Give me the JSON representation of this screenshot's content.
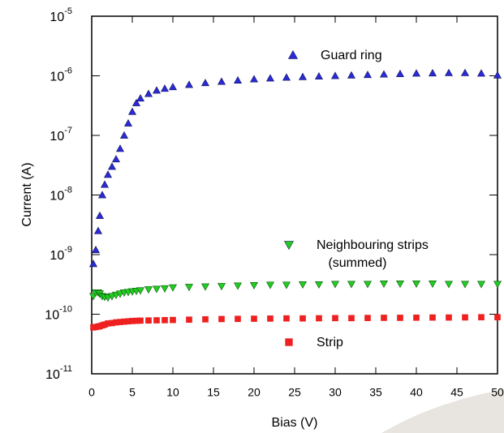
{
  "chart_data": {
    "type": "scatter",
    "x_label": "Bias (V)",
    "y_label": "Current (A)",
    "log_y": true,
    "xlim": [
      0,
      50
    ],
    "xticks": [
      0,
      5,
      10,
      15,
      20,
      25,
      30,
      35,
      40,
      45,
      50
    ],
    "ylim": [
      1e-11,
      1e-05
    ],
    "yticks": [
      {
        "value": 1e-11,
        "label": "10-11"
      },
      {
        "value": 1e-10,
        "label": "10-10"
      },
      {
        "value": 1e-09,
        "label": "10-9"
      },
      {
        "value": 1e-08,
        "label": "10-8"
      },
      {
        "value": 1e-07,
        "label": "10-7"
      },
      {
        "value": 1e-06,
        "label": "10-6"
      },
      {
        "value": 1e-05,
        "label": "10-5"
      }
    ],
    "x": [
      0.2,
      0.5,
      0.8,
      1,
      1.3,
      1.6,
      2,
      2.5,
      3,
      3.5,
      4,
      4.5,
      5,
      5.5,
      6,
      7,
      8,
      9,
      10,
      12,
      14,
      16,
      18,
      20,
      22,
      24,
      26,
      28,
      30,
      32,
      34,
      36,
      38,
      40,
      42,
      44,
      46,
      48,
      50
    ],
    "series": [
      {
        "name": "Guard ring",
        "color": "#2b2bd6",
        "marker": "triangle-up",
        "values": [
          7e-10,
          1.2e-09,
          2.5e-09,
          4.5e-09,
          1e-08,
          1.5e-08,
          2.2e-08,
          3e-08,
          4e-08,
          6e-08,
          1e-07,
          1.6e-07,
          2.5e-07,
          3.5e-07,
          4.2e-07,
          5e-07,
          5.7e-07,
          6.1e-07,
          6.5e-07,
          7.1e-07,
          7.6e-07,
          8e-07,
          8.4e-07,
          8.8e-07,
          9.1e-07,
          9.4e-07,
          9.6e-07,
          9.8e-07,
          1e-06,
          1.02e-06,
          1.04e-06,
          1.06e-06,
          1.08e-06,
          1.1e-06,
          1.11e-06,
          1.12e-06,
          1.12e-06,
          1.1e-06,
          1.02e-06
        ]
      },
      {
        "name": "Neighbouring strips (summed)",
        "color": "#22cc22",
        "marker": "triangle-down",
        "values": [
          2e-10,
          2.3e-10,
          2.3e-10,
          2.2e-10,
          2e-10,
          1.95e-10,
          1.9e-10,
          2e-10,
          2.1e-10,
          2.2e-10,
          2.3e-10,
          2.35e-10,
          2.4e-10,
          2.45e-10,
          2.5e-10,
          2.6e-10,
          2.65e-10,
          2.7e-10,
          2.8e-10,
          2.85e-10,
          2.9e-10,
          2.95e-10,
          3e-10,
          3.05e-10,
          3.1e-10,
          3.1e-10,
          3.15e-10,
          3.15e-10,
          3.2e-10,
          3.2e-10,
          3.2e-10,
          3.25e-10,
          3.25e-10,
          3.25e-10,
          3.25e-10,
          3.2e-10,
          3.2e-10,
          3.2e-10,
          3.2e-10
        ]
      },
      {
        "name": "Strip",
        "color": "#ee2020",
        "marker": "square",
        "values": [
          6e-11,
          6.1e-11,
          6.2e-11,
          6.3e-11,
          6.5e-11,
          6.7e-11,
          7e-11,
          7.1e-11,
          7.3e-11,
          7.4e-11,
          7.5e-11,
          7.6e-11,
          7.7e-11,
          7.75e-11,
          7.8e-11,
          7.85e-11,
          7.9e-11,
          7.95e-11,
          8e-11,
          8.1e-11,
          8.2e-11,
          8.3e-11,
          8.35e-11,
          8.4e-11,
          8.45e-11,
          8.5e-11,
          8.5e-11,
          8.55e-11,
          8.6e-11,
          8.6e-11,
          8.65e-11,
          8.7e-11,
          8.7e-11,
          8.75e-11,
          8.8e-11,
          8.8e-11,
          8.85e-11,
          8.9e-11,
          8.9e-11
        ]
      }
    ]
  }
}
